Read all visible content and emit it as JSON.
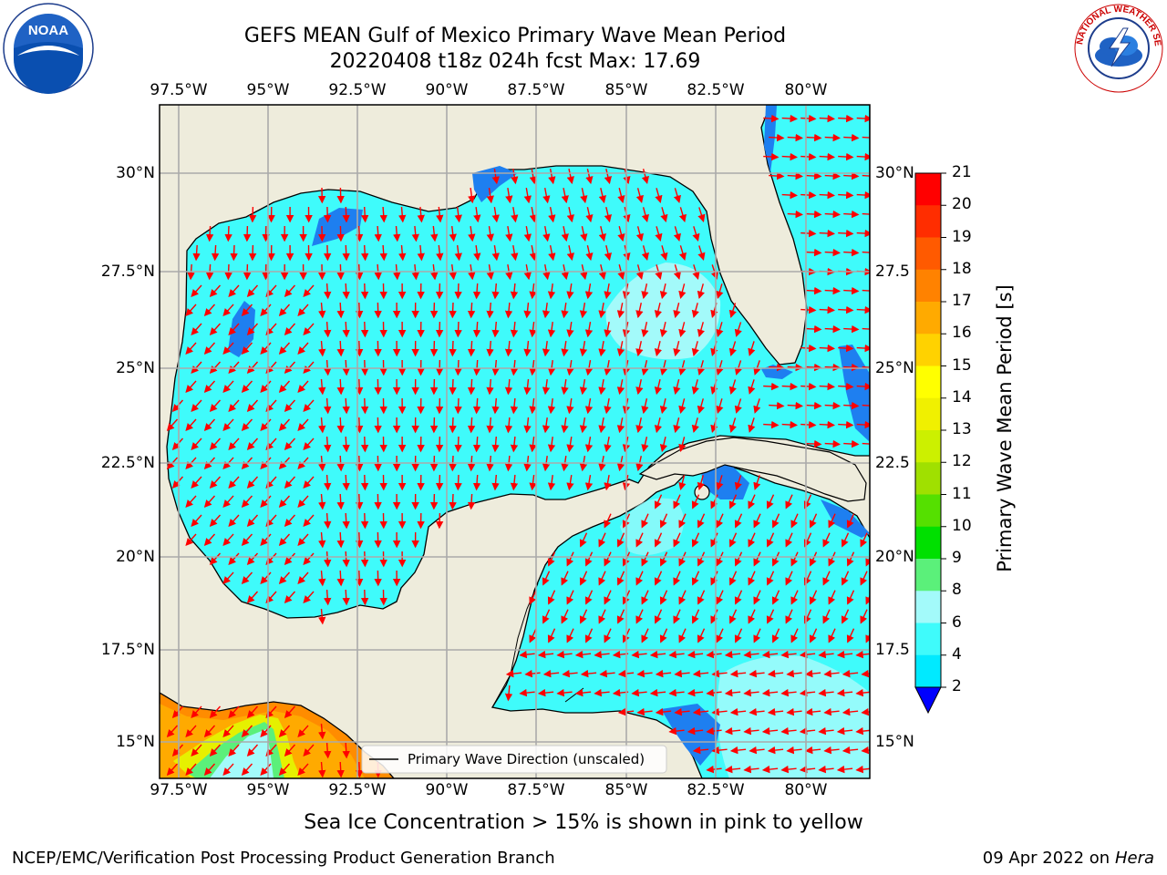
{
  "title": {
    "line1": "GEFS MEAN Gulf of Mexico Primary Wave Mean Period",
    "line2": "20220408 t18z 024h fcst   Max: 17.69"
  },
  "logos": {
    "noara_text": "NOAA",
    "noaa_ring": "NATIONAL OCEANIC AND ATMOSPHERIC ADMINISTRATION · U.S. DEPARTMENT OF COMMERCE",
    "nws_ring": "NATIONAL WEATHER SERVICE"
  },
  "map": {
    "lon_ticks_top": [
      "97.5°W",
      "95°W",
      "92.5°W",
      "90°W",
      "87.5°W",
      "85°W",
      "82.5°W",
      "80°W"
    ],
    "lon_ticks_bottom": [
      "97.5°W",
      "95°W",
      "92.5°W",
      "90°W",
      "87.5°W",
      "85°W",
      "82.5°W",
      "80°W"
    ],
    "lat_ticks_left": [
      "30°N",
      "27.5°N",
      "25°N",
      "22.5°N",
      "20°N",
      "17.5°N",
      "15°N"
    ],
    "lat_ticks_right": [
      "30°N",
      "27.5",
      "25°N",
      "22.5",
      "20°N",
      "17.5",
      "15°N"
    ],
    "legend_label": "Primary Wave Direction (unscaled)",
    "colors": {
      "land": "#eeecdc",
      "ocean_main": "#3ffbfb",
      "ocean_light": "#a3fafa",
      "ocean_dark": "#1e7ff0",
      "arrow": "#ff0000"
    }
  },
  "colorbar": {
    "label": "Primary Wave Mean Period [s]",
    "ticks": [
      "2",
      "4",
      "6",
      "8",
      "9",
      "10",
      "11",
      "12",
      "13",
      "14",
      "15",
      "16",
      "17",
      "18",
      "19",
      "20",
      "21"
    ],
    "colors": [
      "#0000ff",
      "#1e7ff0",
      "#00eaff",
      "#3ffbfb",
      "#a3fafa",
      "#5bf07a",
      "#00e000",
      "#55e000",
      "#a0e000",
      "#ccf000",
      "#f0f000",
      "#ffff00",
      "#ffd200",
      "#ffaa00",
      "#ff8200",
      "#ff5a00",
      "#ff2d00",
      "#ff0000"
    ]
  },
  "footer": {
    "ice_note": "Sea Ice Concentration > 15% is shown in pink to yellow",
    "branch": "NCEP/EMC/Verification Post Processing Product Generation Branch",
    "date": "09 Apr 2022 on",
    "host": "Hera"
  }
}
